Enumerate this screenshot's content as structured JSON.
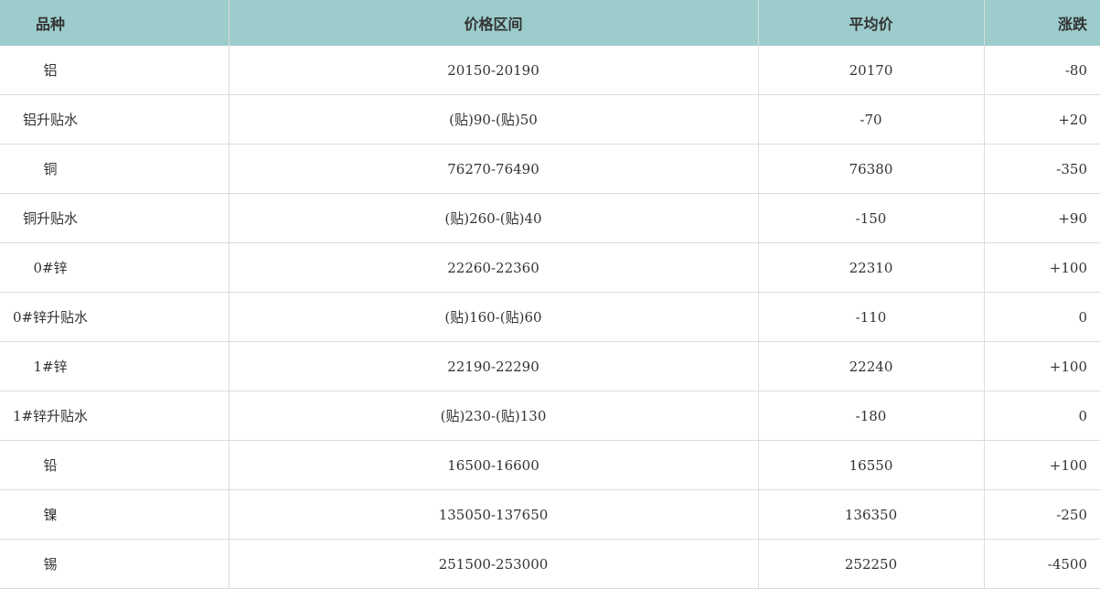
{
  "header": {
    "variety": "品种",
    "range": "价格区间",
    "avg": "平均价",
    "change": "涨跌"
  },
  "rows": [
    {
      "variety": "铝",
      "range": "20150-20190",
      "avg": "20170",
      "change": "-80"
    },
    {
      "variety": "铝升贴水",
      "range": "(贴)90-(贴)50",
      "avg": "-70",
      "change": "+20"
    },
    {
      "variety": "铜",
      "range": "76270-76490",
      "avg": "76380",
      "change": "-350"
    },
    {
      "variety": "铜升贴水",
      "range": "(贴)260-(贴)40",
      "avg": "-150",
      "change": "+90"
    },
    {
      "variety": "0#锌",
      "range": "22260-22360",
      "avg": "22310",
      "change": "+100"
    },
    {
      "variety": "0#锌升贴水",
      "range": "(贴)160-(贴)60",
      "avg": "-110",
      "change": "0"
    },
    {
      "variety": "1#锌",
      "range": "22190-22290",
      "avg": "22240",
      "change": "+100"
    },
    {
      "variety": "1#锌升贴水",
      "range": "(贴)230-(贴)130",
      "avg": "-180",
      "change": "0"
    },
    {
      "variety": "铅",
      "range": "16500-16600",
      "avg": "16550",
      "change": "+100"
    },
    {
      "variety": "镍",
      "range": "135050-137650",
      "avg": "136350",
      "change": "-250"
    },
    {
      "variety": "锡",
      "range": "251500-253000",
      "avg": "252250",
      "change": "-4500"
    }
  ],
  "colors": {
    "header_bg": "#9ccccc",
    "border": "#dcdcdc"
  }
}
